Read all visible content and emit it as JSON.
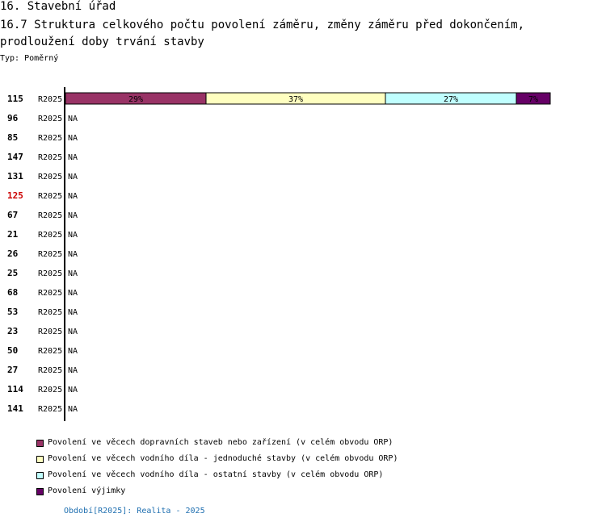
{
  "header": {
    "section": "16. Stavební úřad",
    "title": "16.7 Struktura celkového počtu povolení záměru, změny záměru před dokončením, prodloužení doby trvání stavby",
    "type_label": "Typ: Poměrný"
  },
  "chart_data": {
    "type": "bar",
    "orientation": "horizontal",
    "stacked": true,
    "normalized_percent": true,
    "series_names": [
      "Povolení ve věcech dopravních staveb nebo zařízení (v celém obvodu ORP)",
      "Povolení ve věcech vodního díla - jednoduché stavby (v celém obvodu ORP)",
      "Povolení ve věcech vodního díla - ostatní stavby (v celém obvodu ORP)",
      "Povolení výjimky"
    ],
    "colors": [
      "#993366",
      "#ffffc0",
      "#c0ffff",
      "#660066"
    ],
    "rows": [
      {
        "id": "115",
        "period": "R2025",
        "values": [
          29,
          37,
          27,
          7
        ],
        "labels": [
          "29%",
          "37%",
          "27%",
          "7%"
        ],
        "na": ""
      },
      {
        "id": "96",
        "period": "R2025",
        "values": null,
        "na": "NA"
      },
      {
        "id": "85",
        "period": "R2025",
        "values": null,
        "na": "NA"
      },
      {
        "id": "147",
        "period": "R2025",
        "values": null,
        "na": "NA"
      },
      {
        "id": "131",
        "period": "R2025",
        "values": null,
        "na": "NA"
      },
      {
        "id": "125",
        "period": "R2025",
        "values": null,
        "na": "NA",
        "highlight": true
      },
      {
        "id": "67",
        "period": "R2025",
        "values": null,
        "na": "NA"
      },
      {
        "id": "21",
        "period": "R2025",
        "values": null,
        "na": "NA"
      },
      {
        "id": "26",
        "period": "R2025",
        "values": null,
        "na": "NA"
      },
      {
        "id": "25",
        "period": "R2025",
        "values": null,
        "na": "NA"
      },
      {
        "id": "68",
        "period": "R2025",
        "values": null,
        "na": "NA"
      },
      {
        "id": "53",
        "period": "R2025",
        "values": null,
        "na": "NA"
      },
      {
        "id": "23",
        "period": "R2025",
        "values": null,
        "na": "NA"
      },
      {
        "id": "50",
        "period": "R2025",
        "values": null,
        "na": "NA"
      },
      {
        "id": "27",
        "period": "R2025",
        "values": null,
        "na": "NA"
      },
      {
        "id": "114",
        "period": "R2025",
        "values": null,
        "na": "NA"
      },
      {
        "id": "141",
        "period": "R2025",
        "values": null,
        "na": "NA"
      }
    ],
    "highlight_color": "#cc0000",
    "xlim": [
      0,
      100
    ]
  },
  "footer": {
    "period_note": "Období[R2025]: Realita - 2025"
  }
}
